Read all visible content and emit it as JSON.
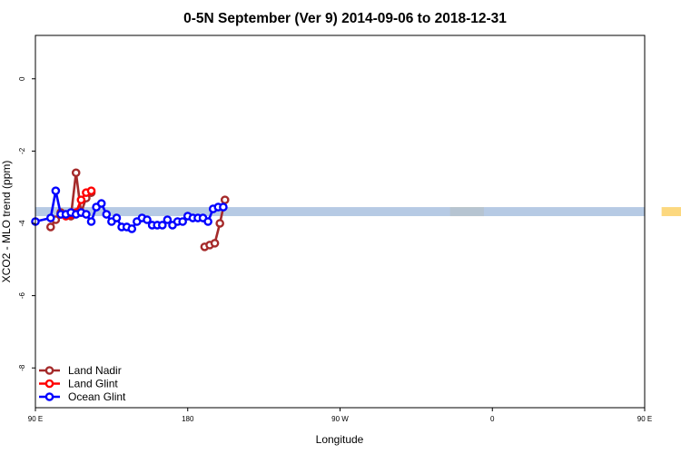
{
  "chart_data": {
    "type": "line",
    "title": "0-5N September (Ver 9)   2014-09-06 to 2018-12-31",
    "xlabel": "Longitude",
    "ylabel": "XCO2 - MLO trend (ppm)",
    "xlim": [
      90,
      450
    ],
    "ylim": [
      -9.1,
      1.2
    ],
    "x_ticks": [
      {
        "value": 90,
        "label": "90 E"
      },
      {
        "value": 180,
        "label": "180"
      },
      {
        "value": 270,
        "label": "90 W"
      },
      {
        "value": 360,
        "label": "0"
      },
      {
        "value": 450,
        "label": "90 E"
      },
      {
        "value": 540,
        "label": "180"
      }
    ],
    "y_ticks": [
      {
        "value": 0,
        "label": "0"
      },
      {
        "value": -2,
        "label": "-2"
      },
      {
        "value": -4,
        "label": "-4"
      },
      {
        "value": -6,
        "label": "-6"
      },
      {
        "value": -8,
        "label": "-8"
      }
    ],
    "reference_band": {
      "y_low": -3.8,
      "y_high": -3.55,
      "color": "#a9c1df"
    },
    "highlight_bands": [
      {
        "x_start": 335,
        "x_end": 355,
        "color": "#fcd87f"
      },
      {
        "x_start": 460,
        "x_end": 480,
        "color": "#fcd87f"
      }
    ],
    "series": [
      {
        "name": "Land Nadir",
        "color": "#a52a2a",
        "x": [
          99,
          102,
          105,
          108,
          111,
          114,
          117,
          120,
          123,
          126,
          129,
          132,
          135,
          138,
          141,
          144,
          147,
          150,
          153,
          156,
          159,
          162,
          165,
          168,
          171,
          174,
          177,
          190,
          193,
          196,
          199,
          202
        ],
        "y": [
          -4.1,
          -3.9,
          -3.7,
          -3.75,
          -3.8,
          -2.6,
          -3.7,
          -3.3,
          -3.15,
          null,
          null,
          null,
          null,
          null,
          null,
          null,
          null,
          null,
          null,
          null,
          null,
          null,
          null,
          null,
          null,
          null,
          null,
          -4.65,
          -4.6,
          -4.55,
          -4.0,
          -3.35
        ]
      },
      {
        "name": "Land Glint",
        "color": "#ff0000",
        "x": [
          105,
          108,
          111,
          114,
          117,
          120,
          123
        ],
        "y": [
          -3.75,
          -3.8,
          -3.75,
          -3.7,
          -3.35,
          -3.15,
          -3.1
        ]
      },
      {
        "name": "Ocean Glint",
        "color": "#0000ff",
        "x": [
          90,
          99,
          102,
          105,
          108,
          111,
          114,
          117,
          120,
          123,
          126,
          129,
          132,
          135,
          138,
          141,
          144,
          147,
          150,
          153,
          156,
          159,
          162,
          165,
          168,
          171,
          174,
          177,
          180,
          183,
          186,
          189,
          192,
          195,
          198,
          201
        ],
        "y": [
          -3.95,
          -3.85,
          -3.1,
          -3.75,
          -3.75,
          -3.7,
          -3.75,
          -3.7,
          -3.75,
          -3.95,
          -3.55,
          -3.45,
          -3.75,
          -3.95,
          -3.85,
          -4.1,
          -4.1,
          -4.15,
          -3.95,
          -3.85,
          -3.9,
          -4.05,
          -4.05,
          -4.05,
          -3.9,
          -4.05,
          -3.95,
          -3.95,
          -3.8,
          -3.85,
          -3.85,
          -3.85,
          -3.95,
          -3.6,
          -3.55,
          -3.55
        ]
      }
    ],
    "legend": {
      "position": "bottom-left"
    }
  }
}
